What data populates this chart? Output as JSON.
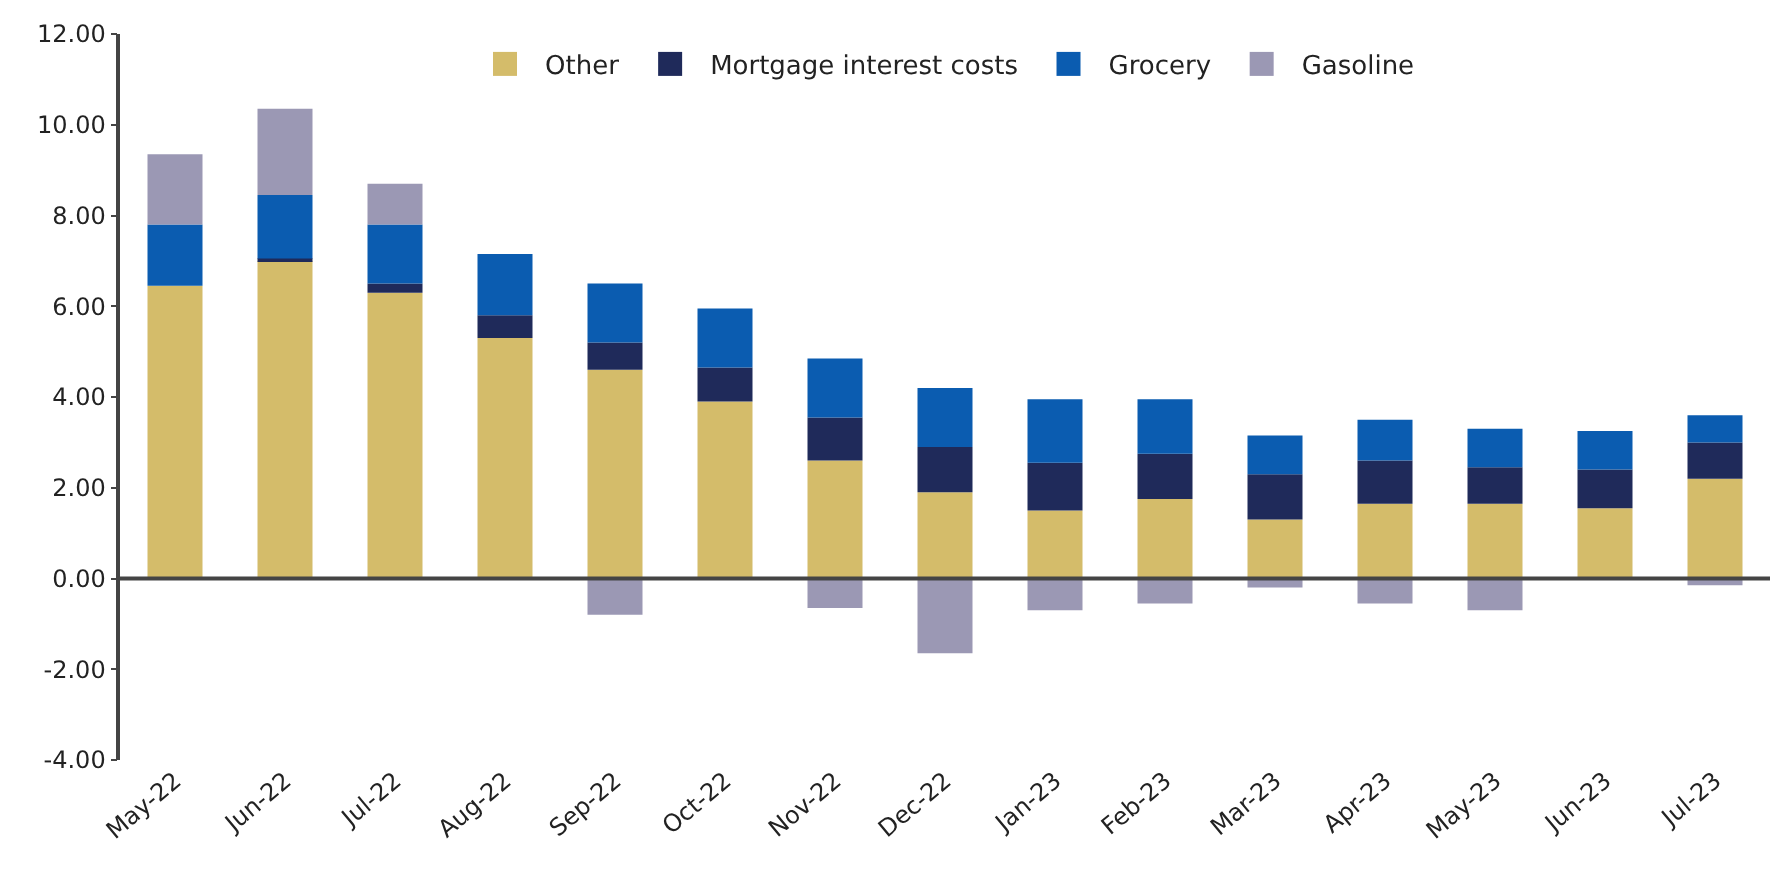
{
  "chart_data": {
    "type": "bar",
    "stacked": true,
    "categories": [
      "May-22",
      "Jun-22",
      "Jul-22",
      "Aug-22",
      "Sep-22",
      "Oct-22",
      "Nov-22",
      "Dec-22",
      "Jan-23",
      "Feb-23",
      "Mar-23",
      "Apr-23",
      "May-23",
      "Jun-23",
      "Jul-23"
    ],
    "series": [
      {
        "name": "Other",
        "color": "#d4bc6a",
        "values": [
          6.45,
          7.0,
          6.3,
          5.3,
          4.6,
          3.9,
          2.6,
          1.9,
          1.5,
          1.75,
          1.3,
          1.65,
          1.65,
          1.55,
          2.2
        ]
      },
      {
        "name": "Mortgage interest costs",
        "color": "#1f2a5a",
        "values": [
          null,
          0.05,
          0.2,
          0.5,
          0.6,
          0.75,
          0.95,
          1.0,
          1.05,
          1.0,
          1.0,
          0.95,
          0.8,
          0.85,
          0.8
        ]
      },
      {
        "name": "Grocery",
        "color": "#0b5cb0",
        "values": [
          1.35,
          1.4,
          1.3,
          1.35,
          1.3,
          1.3,
          1.3,
          1.3,
          1.4,
          1.2,
          0.85,
          0.9,
          0.85,
          0.85,
          0.6
        ]
      },
      {
        "name": "Gasoline",
        "color": "#9b98b4",
        "values": [
          1.55,
          1.9,
          0.9,
          0,
          -0.8,
          0,
          -0.65,
          -1.65,
          -0.7,
          -0.55,
          -0.2,
          -0.55,
          -0.7,
          null,
          -0.15
        ]
      }
    ],
    "ylim": [
      -4,
      12
    ],
    "yticks": [
      {
        "value": -4,
        "label": "-4.00"
      },
      {
        "value": -2,
        "label": "-2.00"
      },
      {
        "value": 0,
        "label": "0.00"
      },
      {
        "value": 2,
        "label": "2.00"
      },
      {
        "value": 4,
        "label": "4.00"
      },
      {
        "value": 6,
        "label": "6.00"
      },
      {
        "value": 8,
        "label": "8.00"
      },
      {
        "value": 10,
        "label": "10.00"
      },
      {
        "value": 12,
        "label": "12.00"
      }
    ],
    "ref_lines": [
      {
        "axis": "y",
        "value": 0,
        "color": "#444444"
      }
    ],
    "legend": "top"
  }
}
